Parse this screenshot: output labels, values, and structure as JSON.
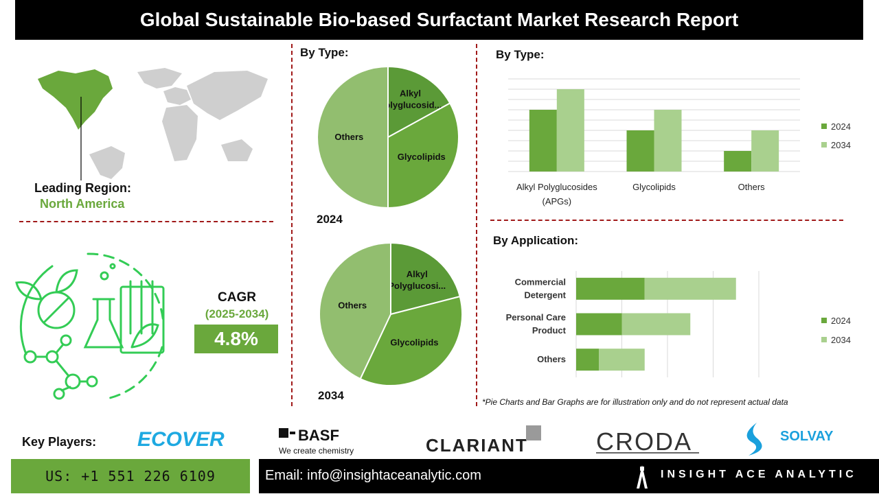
{
  "title": "Global Sustainable Bio-based Surfactant Market Research Report",
  "region": {
    "label": "Leading Region:",
    "value": "North America"
  },
  "cagr": {
    "label": "CAGR",
    "period": "(2025-2034)",
    "value": "4.8%"
  },
  "pie_section": {
    "heading": "By Type:",
    "year_2024": "2024",
    "year_2034": "2034"
  },
  "bar_type": {
    "heading": "By Type:"
  },
  "bar_app": {
    "heading": "By Application:"
  },
  "note": "*Pie Charts and Bar Graphs are for illustration only and do not represent actual data",
  "key_players": {
    "label": "Key Players:",
    "logos": [
      "ECOVER",
      "BASF",
      "We create chemistry",
      "CLARIANT",
      "CRODA",
      "SOLVAY"
    ]
  },
  "contact": {
    "phone": "US: +1 551 226 6109",
    "email": "Email: info@insightaceanalytic.com",
    "brand": "INSIGHT ACE ANALYTIC"
  },
  "colors": {
    "dark_green": "#5b9a37",
    "mid_green": "#6aa83c",
    "light_green": "#a9d08e",
    "pie_light": "#92be6f",
    "divider_red": "#a01818"
  },
  "chart_data": [
    {
      "type": "pie",
      "year": "2024",
      "labels": [
        "Alkyl Polyglucosid...",
        "Glycolipids",
        "Others"
      ],
      "values": [
        17,
        33,
        50
      ]
    },
    {
      "type": "pie",
      "year": "2034",
      "labels": [
        "Alkyl Polyglucosi...",
        "Glycolipids",
        "Others"
      ],
      "values": [
        21,
        36,
        43
      ]
    },
    {
      "type": "bar",
      "title": "By Type:",
      "categories": [
        "Alkyl Polyglucosides (APGs)",
        "Glycolipids",
        "Others"
      ],
      "series": [
        {
          "name": "2024",
          "values": [
            3,
            2,
            1
          ]
        },
        {
          "name": "2034",
          "values": [
            4,
            3,
            2
          ]
        }
      ],
      "ylim": [
        0,
        4.5
      ],
      "grid": true,
      "legend": "right"
    },
    {
      "type": "bar",
      "orientation": "horizontal",
      "stacked": true,
      "title": "By Application:",
      "categories": [
        "Commercial Detergent",
        "Personal Care Product",
        "Others"
      ],
      "series": [
        {
          "name": "2024",
          "values": [
            1.5,
            1.0,
            0.5
          ]
        },
        {
          "name": "2034",
          "values": [
            2.0,
            1.5,
            1.0
          ]
        }
      ],
      "xlim": [
        0,
        4
      ],
      "grid": true,
      "legend": "right"
    }
  ]
}
